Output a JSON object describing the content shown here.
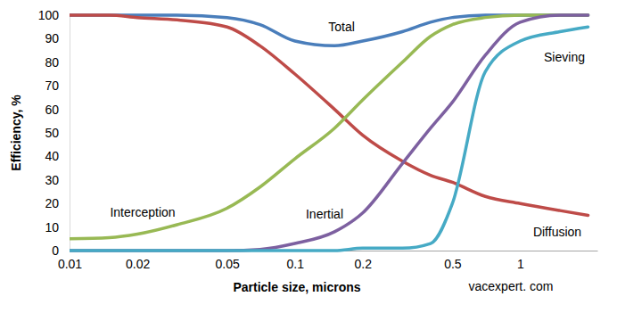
{
  "chart_data": {
    "type": "line",
    "x_label": "Particle size, microns",
    "y_label": "Efficiency, %",
    "annotations": [
      "vacexpert. com"
    ],
    "log": "x",
    "grid": false,
    "xlim": [
      0.01,
      2.2
    ],
    "ylim": [
      0,
      100
    ],
    "xticks": [
      0.01,
      0.02,
      0.05,
      0.1,
      0.2,
      0.5,
      1
    ],
    "yticks": [
      0,
      10,
      20,
      30,
      40,
      50,
      60,
      70,
      80,
      90,
      100
    ],
    "x": [
      0.01,
      0.015,
      0.02,
      0.03,
      0.05,
      0.07,
      0.1,
      0.15,
      0.2,
      0.3,
      0.4,
      0.5,
      0.7,
      1,
      1.5,
      2
    ],
    "series": [
      {
        "name": "Total",
        "color": "#4a7ebb",
        "values": [
          100,
          100,
          100,
          100,
          99,
          96,
          89,
          87,
          89,
          93,
          97,
          99,
          100,
          100,
          100,
          100
        ]
      },
      {
        "name": "Diffusion",
        "color": "#be4b48",
        "values": [
          100,
          100,
          99,
          98,
          95,
          87,
          75,
          60,
          49,
          38,
          32,
          29,
          23,
          20,
          17,
          15
        ]
      },
      {
        "name": "Interception",
        "color": "#98b954",
        "values": [
          5,
          5.5,
          7,
          11,
          18,
          27,
          39,
          52,
          64,
          80,
          91,
          96,
          99,
          100,
          100,
          100
        ]
      },
      {
        "name": "Inertial",
        "color": "#7d60a0",
        "values": [
          0,
          0,
          0,
          0,
          0,
          0.5,
          3,
          8,
          16,
          37,
          52,
          63,
          83,
          97,
          100,
          100
        ]
      },
      {
        "name": "Sieving",
        "color": "#46aac5",
        "values": [
          0,
          0,
          0,
          0,
          0,
          0,
          0,
          0,
          1,
          1,
          3,
          20,
          76,
          89,
          93,
          95
        ]
      }
    ]
  }
}
